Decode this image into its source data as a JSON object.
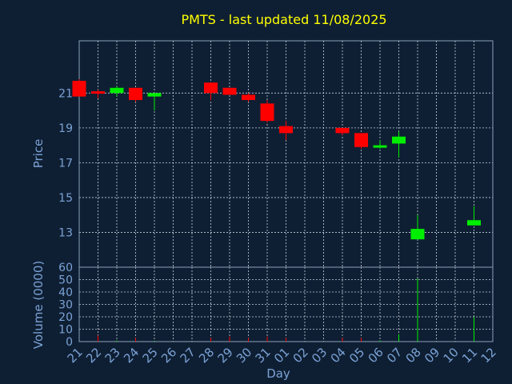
{
  "title": "PMTS - last updated 11/08/2025",
  "colors": {
    "background": "#0f1f33",
    "title": "#ffff00",
    "axis_text": "#7aa2d6",
    "frame": "#8aa0b8",
    "grid": "#c8d0dc",
    "up": "#00ee00",
    "down": "#ff0000"
  },
  "chart_data": [
    {
      "type": "candlestick",
      "ylabel": "Price",
      "ylim": [
        11,
        24
      ],
      "yticks": [
        13,
        15,
        17,
        19,
        21
      ],
      "grid": true,
      "candles": [
        {
          "x": "21",
          "open": 21.7,
          "high": 21.8,
          "low": 20.8,
          "close": 20.8
        },
        {
          "x": "22",
          "open": 21.1,
          "high": 21.2,
          "low": 20.7,
          "close": 21.0
        },
        {
          "x": "23",
          "open": 21.0,
          "high": 21.4,
          "low": 20.8,
          "close": 21.3
        },
        {
          "x": "24",
          "open": 21.3,
          "high": 21.3,
          "low": 20.5,
          "close": 20.6
        },
        {
          "x": "25",
          "open": 20.8,
          "high": 21.0,
          "low": 20.0,
          "close": 21.0
        },
        {
          "x": "28",
          "open": 21.6,
          "high": 21.6,
          "low": 20.6,
          "close": 21.0
        },
        {
          "x": "29",
          "open": 21.3,
          "high": 21.3,
          "low": 20.9,
          "close": 20.9
        },
        {
          "x": "30",
          "open": 20.9,
          "high": 21.0,
          "low": 20.5,
          "close": 20.6
        },
        {
          "x": "31",
          "open": 20.4,
          "high": 20.6,
          "low": 19.3,
          "close": 19.4
        },
        {
          "x": "01",
          "open": 19.1,
          "high": 19.4,
          "low": 18.3,
          "close": 18.7
        },
        {
          "x": "04",
          "open": 19.0,
          "high": 19.0,
          "low": 18.6,
          "close": 18.7
        },
        {
          "x": "05",
          "open": 18.7,
          "high": 18.7,
          "low": 17.8,
          "close": 17.9
        },
        {
          "x": "06",
          "open": 17.9,
          "high": 18.3,
          "low": 17.8,
          "close": 18.0
        },
        {
          "x": "07",
          "open": 18.1,
          "high": 18.8,
          "low": 17.3,
          "close": 18.5
        },
        {
          "x": "08",
          "open": 12.6,
          "high": 14.0,
          "low": 12.6,
          "close": 13.2
        },
        {
          "x": "11",
          "open": 13.4,
          "high": 14.5,
          "low": 13.4,
          "close": 13.7
        }
      ]
    },
    {
      "type": "bar",
      "ylabel": "Volume (0000)",
      "xlabel": "Day",
      "ylim": [
        0,
        60
      ],
      "yticks": [
        0,
        10,
        20,
        30,
        40,
        50,
        60
      ],
      "categories": [
        "21",
        "22",
        "23",
        "24",
        "25",
        "26",
        "27",
        "28",
        "29",
        "30",
        "31",
        "01",
        "02",
        "03",
        "04",
        "05",
        "06",
        "07",
        "08",
        "09",
        "10",
        "11",
        "12"
      ],
      "values": [
        0,
        5,
        1,
        3,
        0.5,
        0,
        0,
        3,
        4,
        3,
        4,
        3,
        0,
        0,
        3,
        3,
        1,
        6,
        51,
        0,
        0,
        20,
        0
      ],
      "directions": [
        "down",
        "down",
        "up",
        "down",
        "up",
        "none",
        "none",
        "down",
        "down",
        "down",
        "down",
        "down",
        "none",
        "none",
        "down",
        "down",
        "up",
        "up",
        "up",
        "none",
        "none",
        "up",
        "none"
      ]
    }
  ]
}
